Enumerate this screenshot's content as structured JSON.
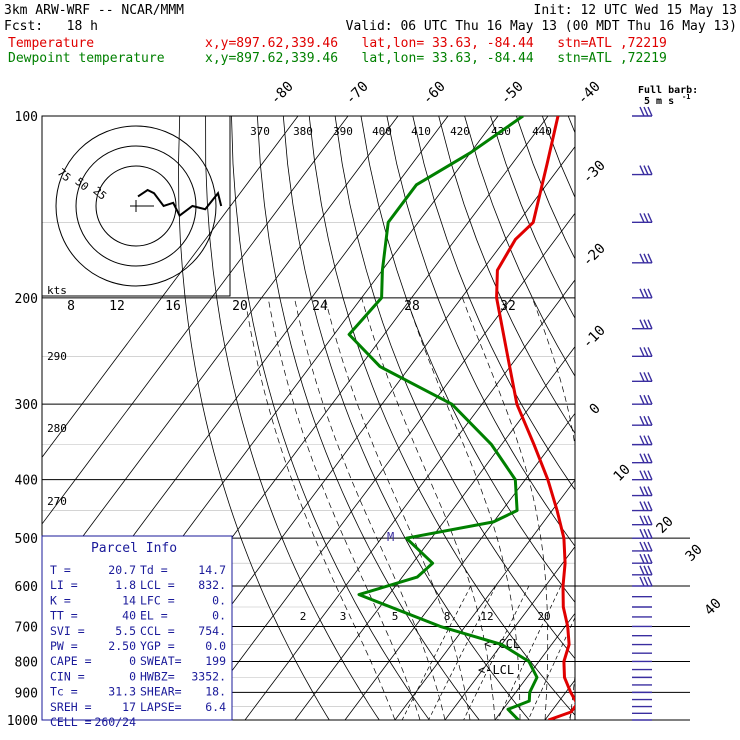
{
  "header": {
    "line1_left": "3km ARW-WRF -- NCAR/MMM",
    "line1_right": "Init: 12 UTC Wed 15 May 13",
    "line2_left": "Fcst:   18 h",
    "line2_right": "Valid: 06 UTC Thu 16 May 13 (00 MDT Thu 16 May 13)",
    "temp_label": "Temperature",
    "temp_info": "x,y=897.62,339.46   lat,lon= 33.63, -84.44   stn=ATL ,72219",
    "dew_label": "Dewpoint temperature",
    "dew_info": "x,y=897.62,339.46   lat,lon= 33.63, -84.44   stn=ATL ,72219"
  },
  "colors": {
    "temperature": "#e00000",
    "dewpoint": "#008000",
    "barbs": "#3a2ea0",
    "lines": "#000000"
  },
  "chart_data": {
    "type": "line",
    "pressure_levels": [
      "100",
      "200",
      "300",
      "400",
      "500",
      "600",
      "700",
      "800",
      "900",
      "1000"
    ],
    "temp_ticks": [
      "-80",
      "-70",
      "-60",
      "-50",
      "-40",
      "-30",
      "-20",
      "-10",
      "0",
      "10",
      "20",
      "30",
      "40"
    ],
    "theta_labels": [
      "370",
      "380",
      "390",
      "400",
      "410",
      "420",
      "430",
      "440",
      "290",
      "280",
      "270"
    ],
    "mixing_ratio_labels": [
      "2",
      "3",
      "5",
      "8",
      "12",
      "20"
    ],
    "series": [
      {
        "name": "Temperature",
        "points": [
          [
            100,
            -68
          ],
          [
            120,
            -63
          ],
          [
            150,
            -57
          ],
          [
            160,
            -58
          ],
          [
            180,
            -57
          ],
          [
            200,
            -53
          ],
          [
            250,
            -42
          ],
          [
            300,
            -33
          ],
          [
            350,
            -23.5
          ],
          [
            400,
            -15.5
          ],
          [
            450,
            -9
          ],
          [
            500,
            -3.5
          ],
          [
            550,
            0.5
          ],
          [
            600,
            3.5
          ],
          [
            650,
            6.7
          ],
          [
            700,
            10.5
          ],
          [
            750,
            13.5
          ],
          [
            800,
            15
          ],
          [
            850,
            17.5
          ],
          [
            900,
            21
          ],
          [
            940,
            24
          ],
          [
            970,
            24
          ],
          [
            1000,
            20.7
          ]
        ]
      },
      {
        "name": "Dewpoint temperature",
        "points": [
          [
            100,
            -75
          ],
          [
            115,
            -80
          ],
          [
            130,
            -86
          ],
          [
            150,
            -86
          ],
          [
            180,
            -80
          ],
          [
            200,
            -76
          ],
          [
            230,
            -77
          ],
          [
            260,
            -66
          ],
          [
            300,
            -46
          ],
          [
            350,
            -32
          ],
          [
            400,
            -22
          ],
          [
            450,
            -17
          ],
          [
            470,
            -20
          ],
          [
            500,
            -35
          ],
          [
            550,
            -26
          ],
          [
            580,
            -27
          ],
          [
            620,
            -36
          ],
          [
            700,
            -15
          ],
          [
            750,
            0
          ],
          [
            800,
            8
          ],
          [
            850,
            12
          ],
          [
            900,
            12.8
          ],
          [
            930,
            14
          ],
          [
            960,
            11
          ],
          [
            1000,
            14.7
          ]
        ]
      }
    ],
    "hodograph": {
      "rings": [
        "75",
        "50",
        "25"
      ],
      "trace_uv": [
        [
          -5,
          3
        ],
        [
          -2,
          5
        ],
        [
          0,
          4
        ],
        [
          3,
          0
        ],
        [
          6,
          1
        ],
        [
          8,
          -3
        ],
        [
          12,
          0
        ],
        [
          16,
          -1
        ],
        [
          20,
          4
        ],
        [
          21,
          0
        ]
      ]
    },
    "hodo_x_axis": {
      "label": "kts",
      "ticks": [
        "8",
        "12",
        "16",
        "20",
        "24",
        "28",
        "32"
      ]
    },
    "wind_profile": {
      "levels": [
        "1000",
        "975",
        "950",
        "925",
        "900",
        "875",
        "850",
        "825",
        "800",
        "775",
        "750",
        "725",
        "700",
        "675",
        "650",
        "625",
        "600",
        "575",
        "550",
        "525",
        "500",
        "475",
        "450",
        "425",
        "400",
        "375",
        "350",
        "325",
        "300",
        "275",
        "250",
        "225",
        "200",
        "175",
        "150",
        "125",
        "100"
      ],
      "barb_ticks": [
        0,
        0,
        0,
        0,
        0,
        0,
        0,
        0,
        0,
        0,
        0,
        0,
        0,
        0,
        0,
        0,
        3,
        3,
        4,
        4,
        4,
        5,
        5,
        5,
        5,
        5,
        6,
        6,
        6,
        6,
        6,
        6,
        6,
        5,
        5,
        5,
        4
      ]
    },
    "legend_barb": {
      "line1": "Full barb:",
      "line2": "5 m s",
      "superscript": "-1"
    },
    "parcel_info": {
      "title": "Parcel Info",
      "rows": [
        [
          "T  =",
          "20.7",
          "Td =",
          "14.7"
        ],
        [
          "LI =",
          "1.8",
          "LCL =",
          "832."
        ],
        [
          "K  =",
          "14",
          "LFC =",
          "0."
        ],
        [
          "TT =",
          "40",
          "EL =",
          "0."
        ],
        [
          "SVI =",
          "5.5",
          "CCL =",
          "754."
        ],
        [
          "PW =",
          "2.50",
          "YGP =",
          "0.0"
        ],
        [
          "CAPE =",
          "0",
          "SWEAT=",
          "199"
        ],
        [
          "CIN =",
          "0",
          "HWBZ=",
          "3352."
        ],
        [
          "Tc =",
          "31.3",
          "SHEAR=",
          "18."
        ],
        [
          "SREH =",
          "17",
          "LAPSE=",
          "6.4"
        ],
        [
          "CELL =",
          "260/24",
          "",
          ""
        ]
      ]
    },
    "markers": {
      "ccl": "<-CCL",
      "lcl": "<-LCL",
      "m": "M"
    }
  }
}
